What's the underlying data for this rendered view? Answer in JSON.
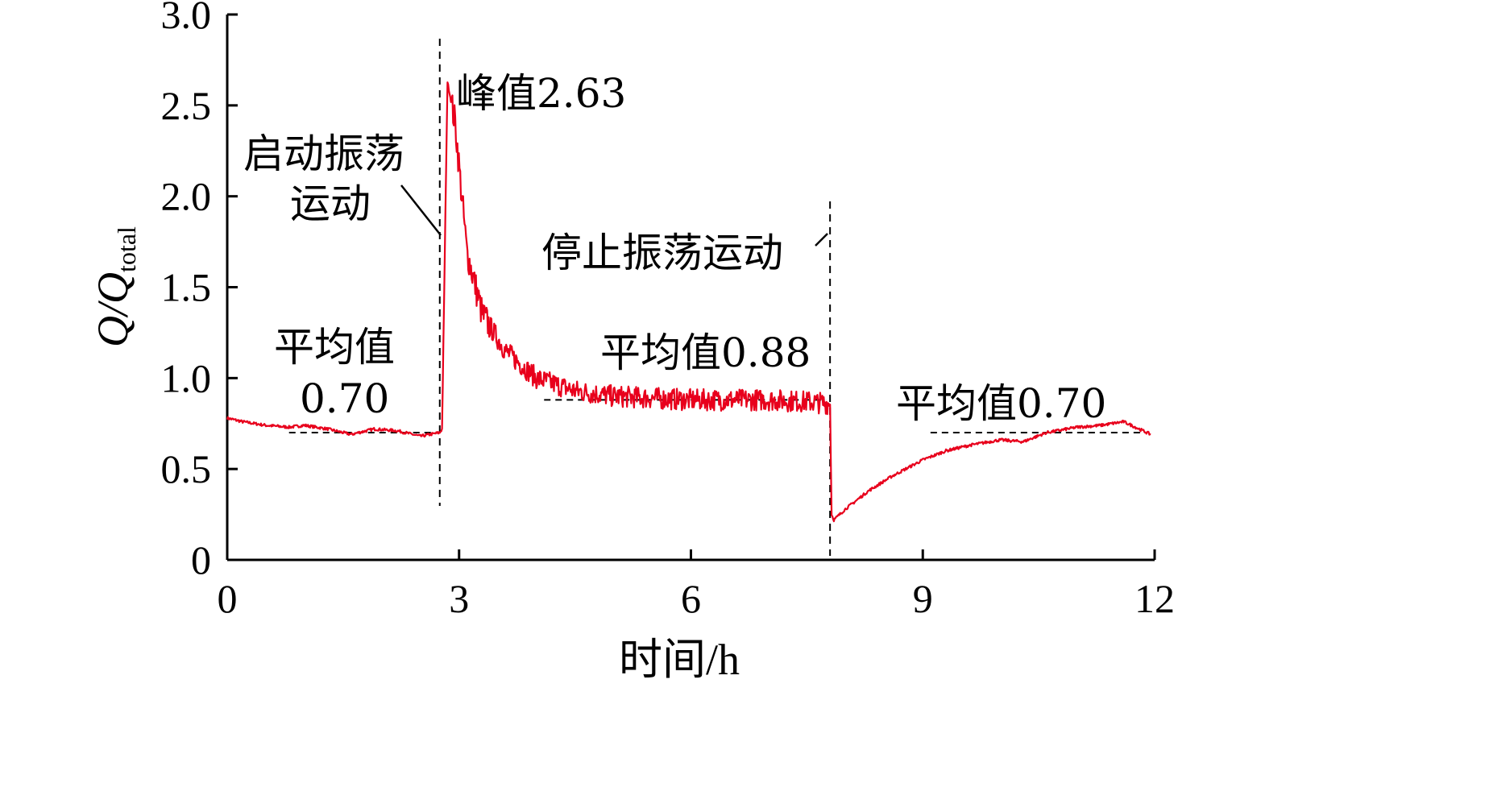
{
  "chart_data": {
    "type": "line",
    "xlabel": "时间/h",
    "ylabel_main": "Q/Q",
    "ylabel_sub": "total",
    "xlim": [
      0,
      12
    ],
    "ylim": [
      0,
      3.0
    ],
    "x_ticks": [
      0,
      3,
      6,
      9,
      12
    ],
    "x_tick_labels": [
      "0",
      "3",
      "6",
      "9",
      "12"
    ],
    "y_ticks": [
      0,
      0.5,
      1.0,
      1.5,
      2.0,
      2.5,
      3.0
    ],
    "y_tick_labels": [
      "0",
      "0.5",
      "1.0",
      "1.5",
      "2.0",
      "2.5",
      "3.0"
    ],
    "grid": false,
    "colors": {
      "series": "#e8001c",
      "axes": "#000000"
    },
    "series": [
      {
        "x": [
          0,
          0.2,
          0.5,
          0.8,
          1.0,
          1.3,
          1.6,
          1.9,
          2.2,
          2.5,
          2.75,
          2.78,
          2.85,
          2.95,
          3.1,
          3.3,
          3.6,
          4.0,
          4.5,
          5.0,
          5.5,
          6.0,
          6.5,
          7.0,
          7.5,
          7.8,
          7.82,
          7.85,
          8.0,
          8.3,
          8.6,
          9.0,
          9.3,
          9.6,
          10.0,
          10.3,
          10.6,
          11.0,
          11.3,
          11.6,
          11.8,
          11.95
        ],
        "y": [
          0.78,
          0.76,
          0.74,
          0.73,
          0.74,
          0.72,
          0.69,
          0.72,
          0.71,
          0.68,
          0.7,
          0.72,
          2.63,
          2.4,
          1.7,
          1.35,
          1.15,
          1.0,
          0.93,
          0.9,
          0.89,
          0.88,
          0.88,
          0.88,
          0.87,
          0.86,
          0.25,
          0.22,
          0.28,
          0.38,
          0.46,
          0.55,
          0.6,
          0.63,
          0.66,
          0.65,
          0.7,
          0.73,
          0.74,
          0.76,
          0.72,
          0.69
        ]
      }
    ],
    "event_lines_x": [
      2.75,
      7.8
    ],
    "mean_lines": [
      {
        "x": [
          0.8,
          2.7
        ],
        "y": 0.7
      },
      {
        "x": [
          4.1,
          7.75
        ],
        "y": 0.88
      },
      {
        "x": [
          9.1,
          11.9
        ],
        "y": 0.7
      }
    ],
    "annotations": {
      "peak": "峰值2.63",
      "start_line1": "启动振荡",
      "start_line2": "运动",
      "stop": "停止振荡运动",
      "mean1_line1": "平均值",
      "mean1_line2": "0.70",
      "mean2": "平均值0.88",
      "mean3": "平均值0.70"
    }
  }
}
